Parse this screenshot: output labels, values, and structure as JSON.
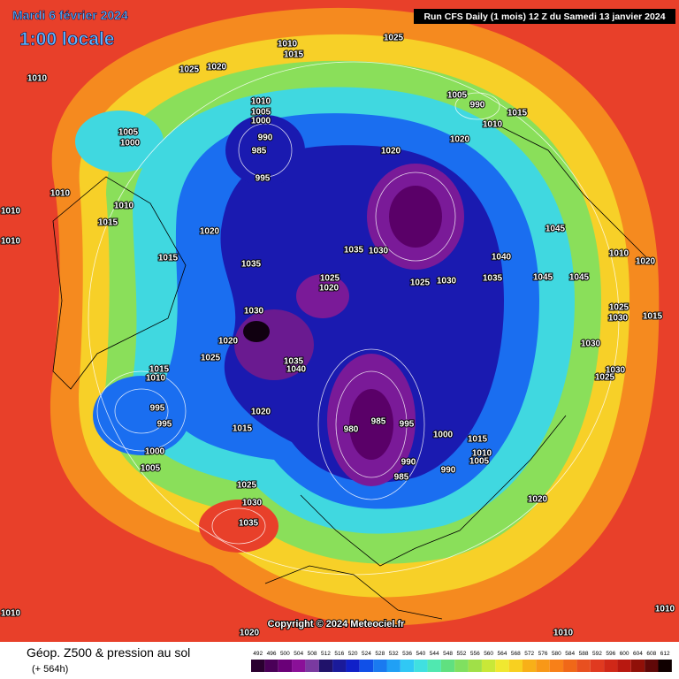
{
  "header": {
    "title": "Mardi 6 février 2024",
    "time": "1:00 locale",
    "run": "Run CFS Daily (1 mois) 12 Z du Samedi 13 janvier 2024"
  },
  "copyright": "Copyright © 2024 Meteociel.fr",
  "footer": {
    "title": "Géop. Z500 & pression au sol",
    "lead": "(+ 564h)"
  },
  "scale": {
    "labels": [
      492,
      496,
      500,
      504,
      508,
      512,
      516,
      520,
      524,
      528,
      532,
      536,
      540,
      544,
      548,
      552,
      556,
      560,
      564,
      568,
      572,
      576,
      580,
      584,
      588,
      592,
      596,
      600,
      604,
      608,
      612
    ],
    "colors": [
      "#2a0030",
      "#4a0058",
      "#6a0078",
      "#8a1098",
      "#7a3aa0",
      "#20126a",
      "#1a1a9a",
      "#1020c8",
      "#1050e8",
      "#1a7af0",
      "#20a0f5",
      "#30c8f5",
      "#40e0e0",
      "#50e8b0",
      "#60e080",
      "#80e060",
      "#a0e048",
      "#c8e838",
      "#f0e830",
      "#f8d020",
      "#f8b018",
      "#f89818",
      "#f88018",
      "#f06818",
      "#e85020",
      "#e03a20",
      "#d02818",
      "#b81810",
      "#901008",
      "#600808",
      "#100000"
    ]
  },
  "pressure_labels": [
    1025,
    1010,
    1015,
    1025,
    1020,
    1010,
    1010,
    1005,
    1000,
    990,
    985,
    995,
    1005,
    1000,
    1010,
    1010,
    1015,
    1010,
    1010,
    1020,
    1015,
    1035,
    1030,
    1020,
    1025,
    1035,
    1040,
    1035,
    1030,
    1025,
    1020,
    1025,
    1030,
    1020,
    1005,
    990,
    1010,
    1015,
    1020,
    1045,
    1040,
    1035,
    1045,
    1045,
    1010,
    1020,
    1025,
    1030,
    1015,
    1030,
    1030,
    1025,
    1015,
    1010,
    995,
    995,
    1000,
    1005,
    1020,
    1015,
    980,
    985,
    995,
    1000,
    1015,
    1010,
    1005,
    990,
    985,
    990,
    1020,
    1025,
    1030,
    1035,
    1010,
    1020,
    1010,
    1010,
    1010
  ]
}
